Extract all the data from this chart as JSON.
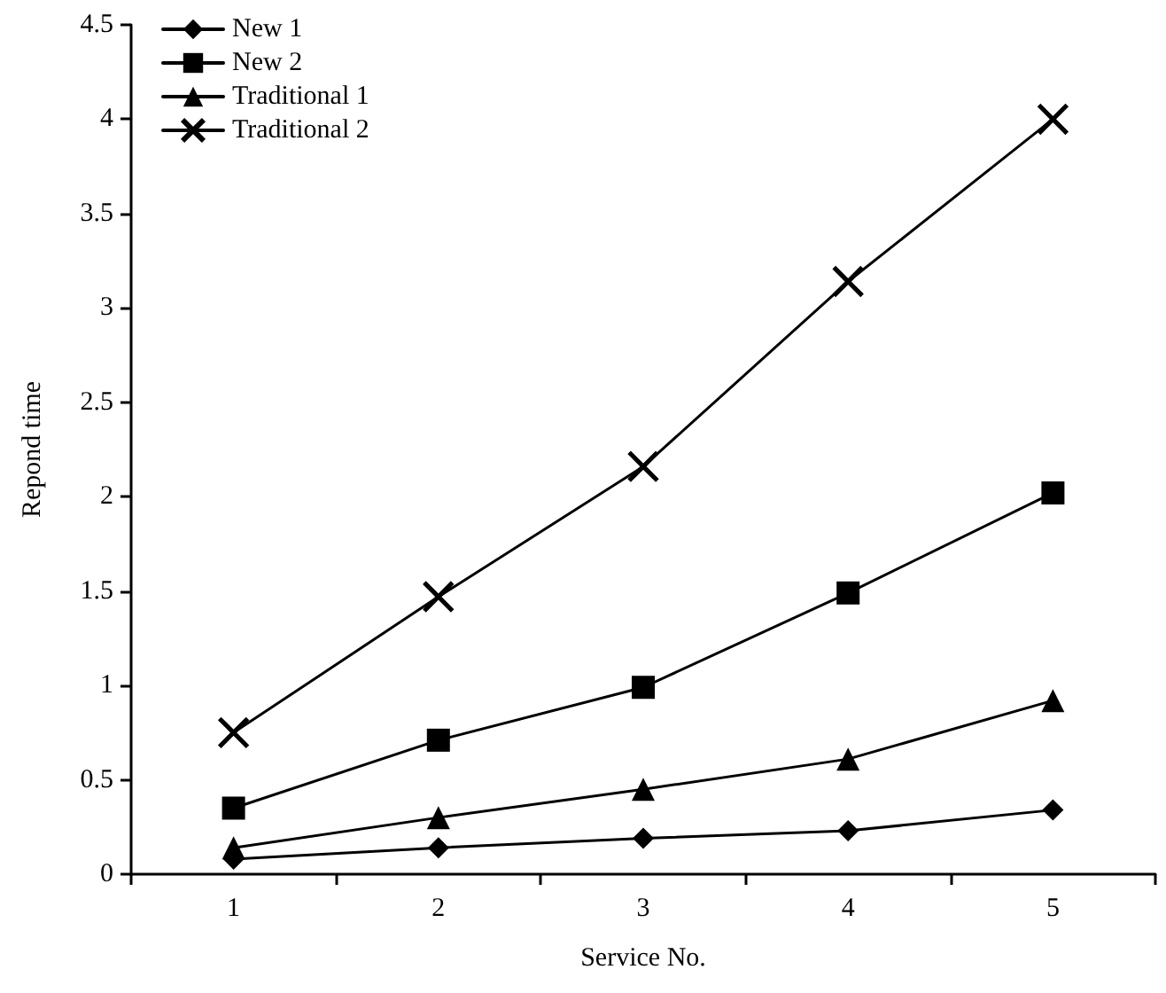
{
  "chart_data": {
    "type": "line",
    "xlabel": "Service No.",
    "ylabel": "Repond time",
    "categories": [
      "1",
      "2",
      "3",
      "4",
      "5"
    ],
    "series": [
      {
        "name": "New 1",
        "color": "#000000",
        "marker": "diamond",
        "values": [
          0.08,
          0.14,
          0.19,
          0.23,
          0.34
        ]
      },
      {
        "name": "New 2",
        "color": "#000000",
        "marker": "square",
        "values": [
          0.35,
          0.71,
          0.99,
          1.49,
          2.02
        ]
      },
      {
        "name": "Traditional 1",
        "color": "#000000",
        "marker": "triangle",
        "values": [
          0.14,
          0.3,
          0.45,
          0.61,
          0.92
        ]
      },
      {
        "name": "Traditional 2",
        "color": "#000000",
        "marker": "cross",
        "values": [
          0.75,
          1.47,
          2.16,
          3.14,
          4.0
        ]
      }
    ],
    "ylim": [
      0,
      4.5
    ],
    "yticks": [
      0,
      0.5,
      1,
      1.5,
      2,
      2.5,
      3,
      3.5,
      4,
      4.5
    ],
    "grid": false,
    "legend": "top left",
    "line_style": "solid"
  }
}
